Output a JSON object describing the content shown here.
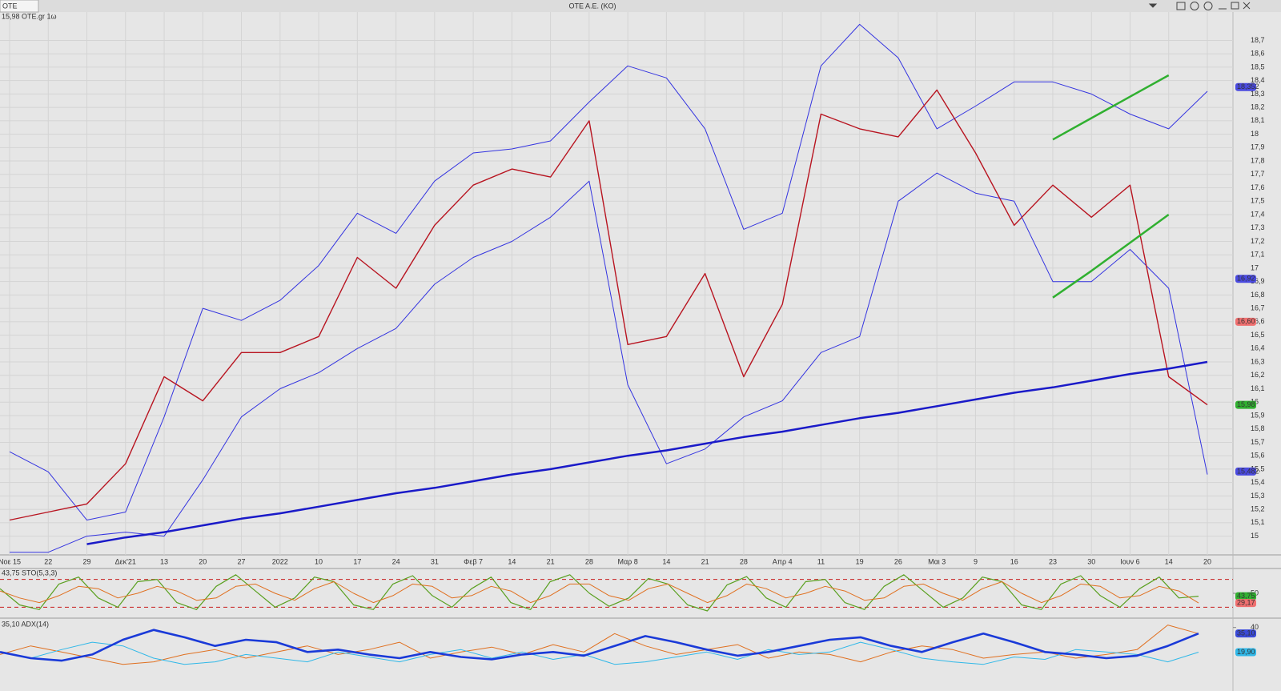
{
  "window": {
    "tab": "OTE",
    "title": "OTE A.E. (KO)"
  },
  "chart_data": [
    {
      "type": "line",
      "title": "15,98 OTE.gr 1ω",
      "categories": [
        "Noε 15",
        "22",
        "29",
        "Δεκ'21",
        "13",
        "20",
        "27",
        "2022",
        "10",
        "17",
        "24",
        "31",
        "Φεβ 7",
        "14",
        "21",
        "28",
        "Μαρ 8",
        "14",
        "21",
        "28",
        "Απρ 4",
        "11",
        "19",
        "26",
        "Μαι 3",
        "9",
        "16",
        "23",
        "30",
        "Ιουν 6",
        "14",
        "20"
      ],
      "ylim": [
        14.86,
        18.9
      ],
      "yticks": [
        15,
        {
          "value": 15.1,
          "label": "15,1"
        },
        {
          "value": 15.2,
          "label": "15,2"
        },
        {
          "value": 15.3,
          "label": "15,3"
        },
        {
          "value": 15.4,
          "label": "15,4"
        },
        {
          "value": 15.5,
          "label": "15,5"
        },
        {
          "value": 15.6,
          "label": "15,6"
        },
        {
          "value": 15.7,
          "label": "15,7"
        },
        {
          "value": 15.8,
          "label": "15,8"
        },
        {
          "value": 15.9,
          "label": "15,9"
        },
        16,
        {
          "value": 16.1,
          "label": "16,1"
        },
        {
          "value": 16.2,
          "label": "16,2"
        },
        {
          "value": 16.3,
          "label": "16,3"
        },
        {
          "value": 16.4,
          "label": "16,4"
        },
        {
          "value": 16.5,
          "label": "16,5"
        },
        {
          "value": 16.6,
          "label": "16,6"
        },
        {
          "value": 16.7,
          "label": "16,7"
        },
        {
          "value": 16.8,
          "label": "16,8"
        },
        {
          "value": 16.9,
          "label": "16,9"
        },
        17,
        {
          "value": 17.1,
          "label": "17,1"
        },
        {
          "value": 17.2,
          "label": "17,2"
        },
        {
          "value": 17.3,
          "label": "17,3"
        },
        {
          "value": 17.4,
          "label": "17,4"
        },
        {
          "value": 17.5,
          "label": "17,5"
        },
        {
          "value": 17.6,
          "label": "17,6"
        },
        {
          "value": 17.7,
          "label": "17,7"
        },
        {
          "value": 17.8,
          "label": "17,8"
        },
        {
          "value": 17.9,
          "label": "17,9"
        },
        18,
        {
          "value": 18.1,
          "label": "18,1"
        },
        {
          "value": 18.2,
          "label": "18,2"
        },
        {
          "value": 18.3,
          "label": "18,3"
        },
        {
          "value": 18.4,
          "label": "18,4"
        },
        {
          "value": 18.5,
          "label": "18,5"
        },
        {
          "value": 18.6,
          "label": "18,6"
        },
        {
          "value": 18.7,
          "label": "18,7"
        }
      ],
      "grid": true,
      "series": [
        {
          "color": "#3434e0",
          "width": 1,
          "values": [
            15.63,
            15.48,
            15.12,
            15.18,
            15.89,
            16.7,
            16.61,
            16.76,
            17.02,
            17.41,
            17.26,
            17.65,
            17.86,
            17.89,
            17.95,
            18.24,
            18.51,
            18.42,
            18.04,
            17.29,
            17.41,
            18.51,
            18.82,
            18.57,
            18.04,
            18.21,
            18.39,
            18.39,
            18.3,
            18.15,
            18.04,
            18.32
          ]
        },
        {
          "color": "#3434e0",
          "width": 1,
          "values": [
            14.88,
            14.88,
            15.0,
            15.03,
            15.0,
            15.42,
            15.89,
            16.1,
            16.22,
            16.4,
            16.55,
            16.88,
            17.08,
            17.2,
            17.38,
            17.65,
            16.13,
            15.54,
            15.65,
            15.89,
            16.01,
            16.37,
            16.49,
            17.5,
            17.71,
            17.56,
            17.5,
            16.9,
            16.9,
            17.14,
            16.85,
            15.46
          ]
        },
        {
          "color": "#b81420",
          "width": 1.4,
          "values": [
            15.12,
            15.18,
            15.24,
            15.54,
            16.19,
            16.01,
            16.37,
            16.37,
            16.49,
            17.08,
            16.85,
            17.32,
            17.62,
            17.74,
            17.68,
            18.1,
            16.43,
            16.49,
            16.96,
            16.19,
            16.73,
            18.15,
            18.04,
            17.98,
            18.33,
            17.86,
            17.32,
            17.62,
            17.38,
            17.62,
            16.19,
            15.98
          ]
        },
        {
          "color": "#1a1ac8",
          "width": 2.5,
          "values": [
            null,
            null,
            14.94,
            14.99,
            15.03,
            15.08,
            15.13,
            15.17,
            15.22,
            15.27,
            15.32,
            15.36,
            15.41,
            15.46,
            15.5,
            15.55,
            15.6,
            15.64,
            15.69,
            15.74,
            15.78,
            15.83,
            15.88,
            15.92,
            15.97,
            16.02,
            16.07,
            16.11,
            16.16,
            16.21,
            16.25,
            16.3
          ]
        },
        {
          "color": "#30b030",
          "width": 2.5,
          "values": [
            null,
            null,
            null,
            null,
            null,
            null,
            null,
            null,
            null,
            null,
            null,
            null,
            null,
            null,
            null,
            null,
            null,
            null,
            null,
            null,
            null,
            null,
            null,
            null,
            null,
            null,
            null,
            17.96,
            18.12,
            18.28,
            18.44,
            null
          ]
        },
        {
          "color": "#30b030",
          "width": 2.5,
          "values": [
            null,
            null,
            null,
            null,
            null,
            null,
            null,
            null,
            null,
            null,
            null,
            null,
            null,
            null,
            null,
            null,
            null,
            null,
            null,
            null,
            null,
            null,
            null,
            null,
            null,
            null,
            null,
            16.78,
            16.98,
            17.19,
            17.4,
            null
          ]
        }
      ],
      "price_labels": [
        {
          "value": 18.352,
          "label": "18,352",
          "color": "#4a4ae0"
        },
        {
          "value": 16.92,
          "label": "16,92",
          "color": "#4a4ae0"
        },
        {
          "value": 16.6,
          "label": "16,60",
          "color": "#f07070"
        },
        {
          "value": 15.98,
          "label": "15,98",
          "color": "#30b030"
        },
        {
          "value": 15.482,
          "label": "15,482",
          "color": "#4a4ae0"
        }
      ]
    },
    {
      "type": "line",
      "title": "43,75 STO(5,3,3)",
      "ylim": [
        0,
        100
      ],
      "yticks": [
        50
      ],
      "levels": [
        80,
        20
      ],
      "series": [
        {
          "color": "#5aa020",
          "width": 1.2,
          "values": [
            60,
            25,
            15,
            70,
            85,
            40,
            20,
            75,
            80,
            30,
            15,
            65,
            90,
            55,
            20,
            40,
            85,
            75,
            25,
            15,
            70,
            88,
            45,
            20,
            60,
            85,
            30,
            15,
            75,
            90,
            50,
            22,
            40,
            82,
            70,
            25,
            12,
            68,
            86,
            40,
            20,
            75,
            80,
            30,
            15,
            65,
            90,
            55,
            20,
            40,
            85,
            75,
            25,
            15,
            70,
            88,
            45,
            20,
            60,
            85,
            40,
            43.75
          ]
        },
        {
          "color": "#e07020",
          "width": 1,
          "values": [
            55,
            40,
            30,
            45,
            65,
            60,
            40,
            50,
            65,
            55,
            35,
            40,
            65,
            70,
            50,
            35,
            60,
            75,
            50,
            30,
            45,
            70,
            65,
            40,
            45,
            65,
            55,
            30,
            45,
            70,
            70,
            45,
            35,
            60,
            70,
            50,
            30,
            45,
            70,
            60,
            40,
            50,
            65,
            55,
            35,
            40,
            65,
            70,
            50,
            35,
            60,
            75,
            50,
            30,
            45,
            70,
            65,
            40,
            45,
            65,
            55,
            29.17
          ]
        }
      ],
      "price_labels": [
        {
          "value": 43.75,
          "label": "43,75",
          "color": "#30b030"
        },
        {
          "value": 29.17,
          "label": "29,17",
          "color": "#f07070"
        }
      ]
    },
    {
      "type": "line",
      "title": "35,10 ADX(14)",
      "ylim": [
        0,
        45
      ],
      "yticks": [
        40
      ],
      "series": [
        {
          "color": "#e07020",
          "width": 1,
          "values": [
            18,
            25,
            20,
            15,
            10,
            12,
            18,
            22,
            15,
            20,
            25,
            18,
            22,
            28,
            15,
            20,
            24,
            18,
            26,
            20,
            35,
            25,
            18,
            22,
            26,
            15,
            20,
            18,
            12,
            20,
            25,
            22,
            15,
            18,
            20,
            15,
            18,
            22,
            42,
            35
          ]
        },
        {
          "color": "#30b8e8",
          "width": 1,
          "values": [
            20,
            15,
            22,
            28,
            25,
            15,
            10,
            12,
            18,
            15,
            12,
            20,
            16,
            12,
            18,
            22,
            15,
            20,
            14,
            18,
            10,
            12,
            16,
            20,
            14,
            22,
            18,
            20,
            28,
            22,
            15,
            12,
            10,
            16,
            14,
            22,
            20,
            18,
            12,
            19.9
          ]
        },
        {
          "color": "#1a3ad8",
          "width": 2.6,
          "values": [
            20,
            15,
            13,
            18,
            30,
            38,
            32,
            25,
            30,
            28,
            20,
            22,
            18,
            15,
            20,
            16,
            14,
            18,
            20,
            17,
            25,
            33,
            28,
            22,
            17,
            20,
            25,
            30,
            32,
            25,
            20,
            28,
            35,
            28,
            20,
            18,
            15,
            17,
            25,
            35.1
          ]
        }
      ],
      "price_labels": [
        {
          "value": 35.1,
          "label": "35,10",
          "color": "#3a4ad8"
        },
        {
          "value": 19.9,
          "label": "19,90",
          "color": "#30b8e8"
        }
      ]
    }
  ]
}
